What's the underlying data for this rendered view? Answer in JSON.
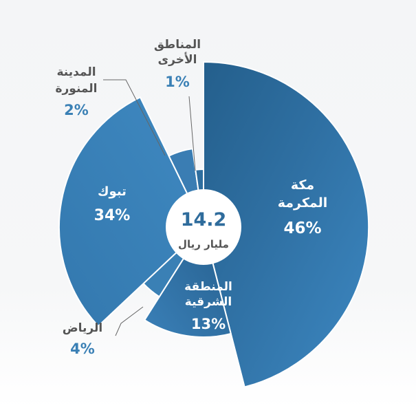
{
  "chart_data": {
    "type": "pie",
    "variant": "polar-area-with-center-hole",
    "center_value": "14.2",
    "center_unit": "مليار ريال",
    "slices": [
      {
        "label_lines": [
          "مكة",
          "المكرمة"
        ],
        "value": 46,
        "pct_label": "46%",
        "color": "#3a7db3",
        "label_color": "#ffffff",
        "label_inside": true
      },
      {
        "label_lines": [
          "المنطقة",
          "الشرقية"
        ],
        "value": 13,
        "pct_label": "13%",
        "color": "#3378ad",
        "label_color": "#ffffff",
        "label_inside": true
      },
      {
        "label_lines": [
          "الرياض"
        ],
        "value": 4,
        "pct_label": "4%",
        "color": "#3a80b5",
        "label_color": "#555555",
        "label_inside": false
      },
      {
        "label_lines": [
          "تبوك"
        ],
        "value": 34,
        "pct_label": "34%",
        "color": "#3a80b5",
        "label_color": "#ffffff",
        "label_inside": true
      },
      {
        "label_lines": [
          "المدينة",
          "المنورة"
        ],
        "value": 2,
        "pct_label": "2%",
        "color": "#3a7db3",
        "label_color": "#555555",
        "label_inside": false
      },
      {
        "label_lines": [
          "المناطق",
          "الأخرى"
        ],
        "value": 1,
        "pct_label": "1%",
        "color": "#2e6e9f",
        "label_color": "#555555",
        "label_inside": false
      }
    ],
    "pct_color_outside": "#3a80b5",
    "leader_line_color": "#666666"
  }
}
